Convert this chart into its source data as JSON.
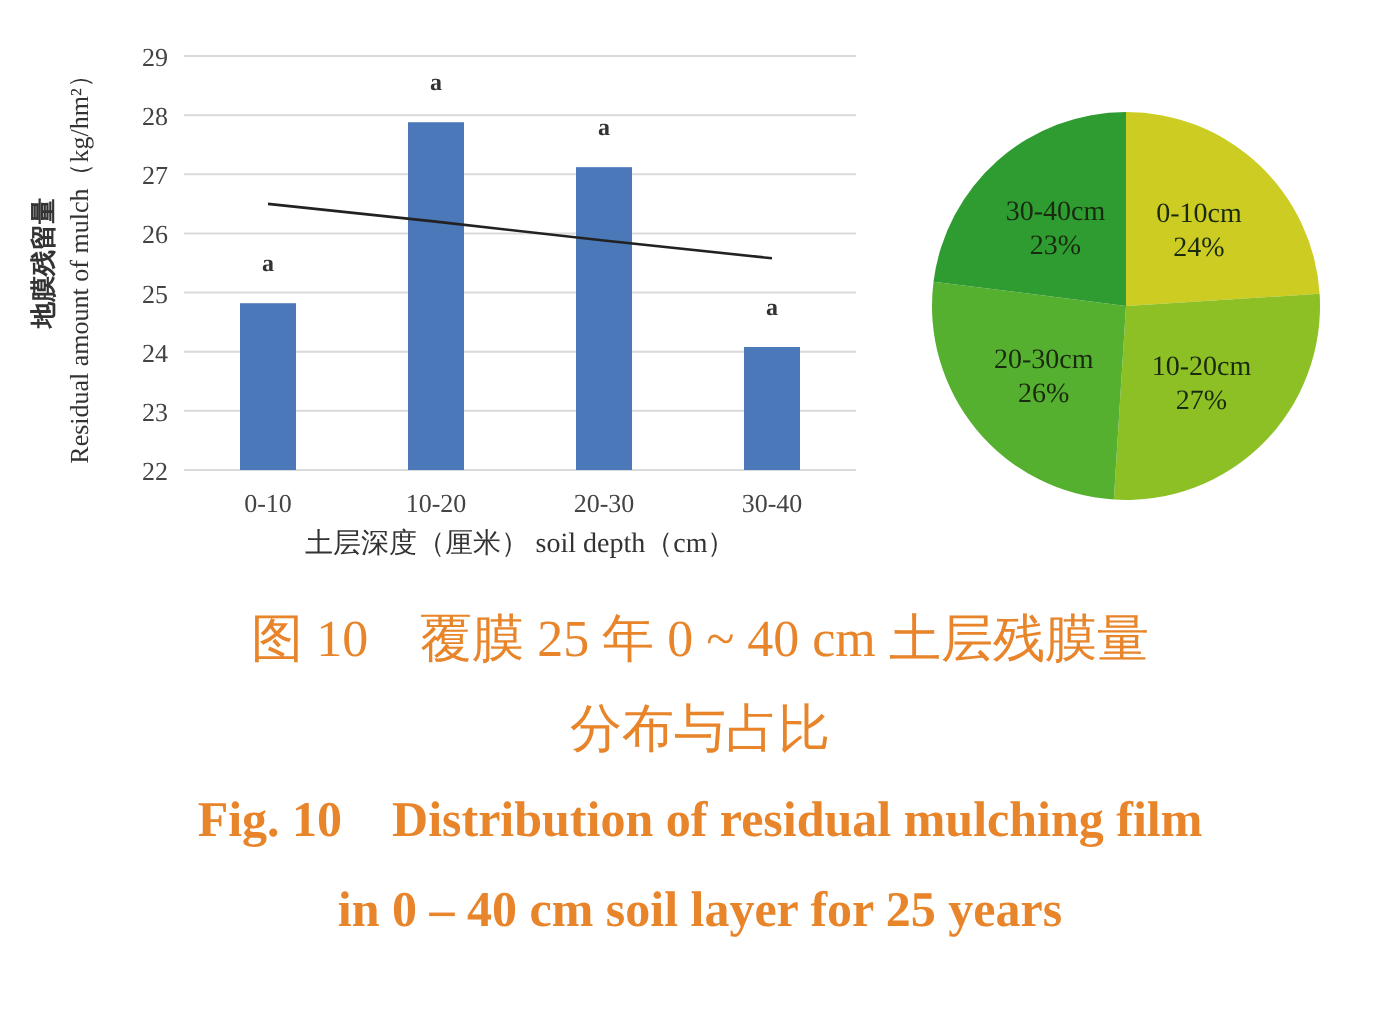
{
  "chart_data": [
    {
      "type": "bar",
      "categories": [
        "0-10",
        "10-20",
        "20-30",
        "30-40"
      ],
      "series": [
        {
          "type": "bar",
          "color": "#4a78b8",
          "values": [
            24.82,
            27.88,
            27.12,
            24.08
          ],
          "value_labels": [
            "a",
            "a",
            "a",
            "a"
          ]
        },
        {
          "type": "line",
          "color": "#222222",
          "values": [
            26.5,
            26.2,
            25.88,
            25.58
          ]
        }
      ],
      "ylim": [
        22,
        29
      ],
      "yticks": [
        22,
        23,
        24,
        25,
        26,
        27,
        28,
        29
      ],
      "grid": "y",
      "marker": "none",
      "ylabel": "地膜残留量\nResidual amount of mulch（kg/hm²）",
      "xlabel": "土层深度（厘米） soil depth（cm）",
      "annotations": [
        "图 10　覆膜 25 年 0 ~ 40 cm 土层残膜量",
        "分布与占比",
        "Fig. 10　Distribution of residual mulching film",
        "in 0 – 40 cm soil layer for 25 years"
      ]
    },
    {
      "type": "pie",
      "categories": [
        "0-10cm",
        "10-20cm",
        "20-30cm",
        "30-40cm"
      ],
      "values": [
        24,
        27,
        26,
        23
      ],
      "value_labels": [
        "24%",
        "27%",
        "26%",
        "23%"
      ],
      "colors": [
        "#cccc22",
        "#8cc024",
        "#56b030",
        "#2e9c30"
      ]
    }
  ]
}
